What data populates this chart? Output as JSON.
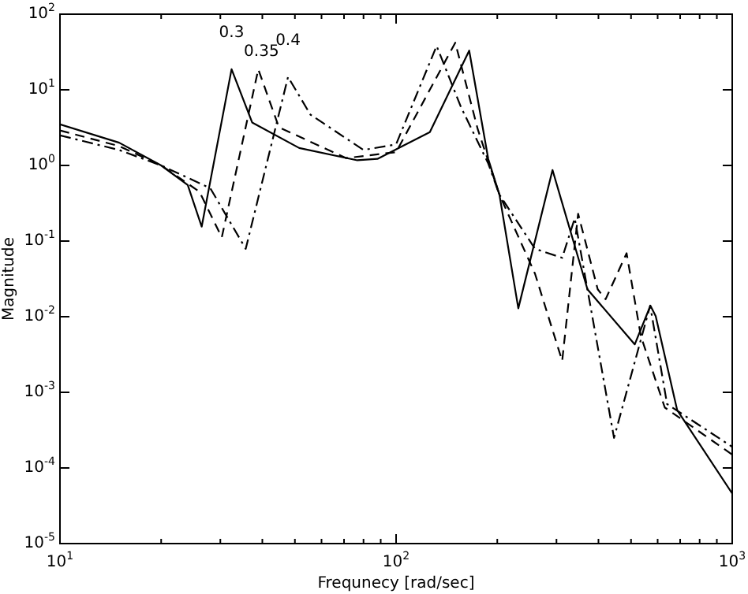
{
  "chart_data": {
    "type": "line",
    "xlabel": "Frequnecy [rad/sec]",
    "ylabel": "Magnitude",
    "log": "xy",
    "legend": false,
    "marker": "none",
    "xlim": [
      10,
      1000
    ],
    "ylim": [
      1e-05,
      100
    ],
    "xticks": [
      {
        "value": 10,
        "label": "10$^{1}$"
      },
      {
        "value": 20,
        "label": null
      },
      {
        "value": 30,
        "label": null
      },
      {
        "value": 40,
        "label": null
      },
      {
        "value": 50,
        "label": null
      },
      {
        "value": 60,
        "label": null
      },
      {
        "value": 70,
        "label": null
      },
      {
        "value": 80,
        "label": null
      },
      {
        "value": 90,
        "label": null
      },
      {
        "value": 100,
        "label": "10$^{2}$"
      },
      {
        "value": 200,
        "label": null
      },
      {
        "value": 300,
        "label": null
      },
      {
        "value": 400,
        "label": null
      },
      {
        "value": 500,
        "label": null
      },
      {
        "value": 600,
        "label": null
      },
      {
        "value": 700,
        "label": null
      },
      {
        "value": 800,
        "label": null
      },
      {
        "value": 900,
        "label": null
      },
      {
        "value": 1000,
        "label": "10$^{3}$"
      }
    ],
    "yticks": [
      {
        "value": 1e-05,
        "label": "10$^{-5}$"
      },
      {
        "value": 0.0001,
        "label": "10$^{-4}$"
      },
      {
        "value": 0.001,
        "label": "10$^{-3}$"
      },
      {
        "value": 0.01,
        "label": "10$^{-2}$"
      },
      {
        "value": 0.1,
        "label": "10$^{-1}$"
      },
      {
        "value": 1,
        "label": "10$^{0}$"
      },
      {
        "value": 10,
        "label": "10$^{1}$"
      },
      {
        "value": 100,
        "label": "10$^{2}$"
      }
    ],
    "series": [
      {
        "color": "#000000",
        "line_style": "solid",
        "x": [
          10,
          15,
          20,
          24,
          26.4,
          32.4,
          37.3,
          51.5,
          76.7,
          88,
          126,
          165,
          188,
          203,
          231,
          292,
          371,
          513,
          571,
          592,
          686,
          1000
        ],
        "values": [
          3.5,
          2,
          1,
          0.55,
          0.155,
          18.7,
          3.7,
          1.7,
          1.17,
          1.22,
          2.75,
          33,
          1.22,
          0.41,
          0.0129,
          0.87,
          0.023,
          0.0043,
          0.014,
          0.0102,
          0.00058,
          4.6e-05
        ]
      },
      {
        "color": "#000000",
        "line_style": "dashed",
        "x": [
          10,
          15,
          20,
          26,
          30.3,
          38.9,
          44.8,
          71,
          100,
          150,
          175,
          203,
          259,
          312,
          348,
          398,
          420,
          485,
          535,
          630,
          1000
        ],
        "values": [
          2.9,
          1.8,
          1,
          0.45,
          0.112,
          18.7,
          3.2,
          1.25,
          1.5,
          42,
          3,
          0.41,
          0.037,
          0.0026,
          0.23,
          0.023,
          0.017,
          0.069,
          0.0055,
          0.00063,
          0.00015
        ]
      },
      {
        "color": "#000000",
        "line_style": "dashdot",
        "x": [
          10,
          15,
          20,
          28,
          35.7,
          47.7,
          55.6,
          80,
          100,
          132,
          156,
          188,
          203,
          259,
          312,
          340,
          445,
          570,
          640,
          1000
        ],
        "values": [
          2.5,
          1.6,
          1,
          0.5,
          0.079,
          14.8,
          4.7,
          1.6,
          1.9,
          38,
          5.9,
          1.06,
          0.41,
          0.079,
          0.06,
          0.2,
          0.00025,
          0.014,
          0.0007,
          0.00019
        ]
      }
    ],
    "annotations": [
      "0.3",
      "0.35",
      "0.4"
    ]
  }
}
